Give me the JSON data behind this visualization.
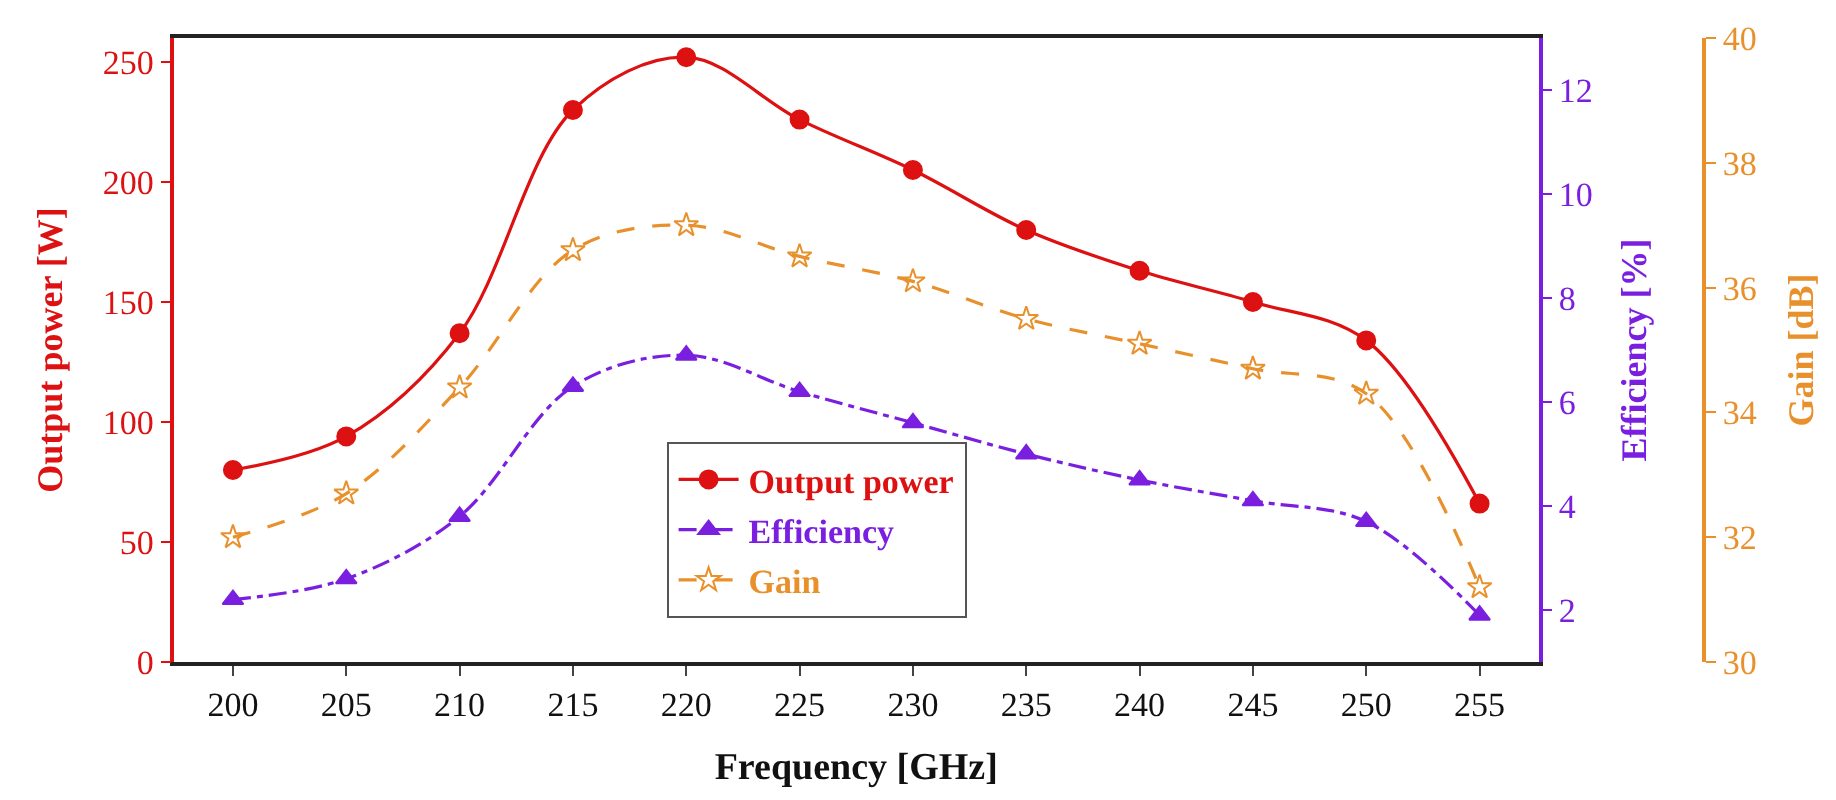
{
  "chart_data": {
    "type": "line",
    "xlabel": "Frequency [GHz]",
    "ylabel": "Output power [W]",
    "y2label": "Efficiency [%]",
    "y3label": "Gain [dB]",
    "x": [
      200,
      205,
      210,
      215,
      220,
      225,
      230,
      235,
      240,
      245,
      250,
      255
    ],
    "xlim": [
      197.4,
      257.6
    ],
    "xticks": [
      200,
      205,
      210,
      215,
      220,
      225,
      230,
      235,
      240,
      245,
      250,
      255
    ],
    "ylim": [
      0,
      260
    ],
    "yticks": [
      0,
      50,
      100,
      150,
      200,
      250
    ],
    "y2lim": [
      1,
      13
    ],
    "y2ticks": [
      2,
      4,
      6,
      8,
      10,
      12
    ],
    "y3lim": [
      30,
      40
    ],
    "y3ticks": [
      30,
      32,
      34,
      36,
      38,
      40
    ],
    "legend": "bottom center",
    "series": [
      {
        "name": "Output power",
        "color": "#dd1111",
        "marker": "circle",
        "line_style": "solid",
        "values": [
          80,
          94,
          137,
          230,
          252,
          226,
          205,
          180,
          163,
          150,
          134,
          66
        ]
      },
      {
        "name": "Efficiency",
        "color": "#7a1fe0",
        "marker": "triangle",
        "line_style": "dashdot",
        "axis": "y2",
        "values": [
          2.2,
          2.6,
          3.8,
          6.3,
          6.9,
          6.2,
          5.6,
          5.0,
          4.5,
          4.1,
          3.7,
          1.9
        ]
      },
      {
        "name": "Gain",
        "color": "#e8912c",
        "marker": "star",
        "line_style": "dashed",
        "axis": "y3",
        "values": [
          32.0,
          32.7,
          34.4,
          36.6,
          37.0,
          36.5,
          36.1,
          35.5,
          35.1,
          34.7,
          34.3,
          31.2
        ]
      }
    ]
  }
}
